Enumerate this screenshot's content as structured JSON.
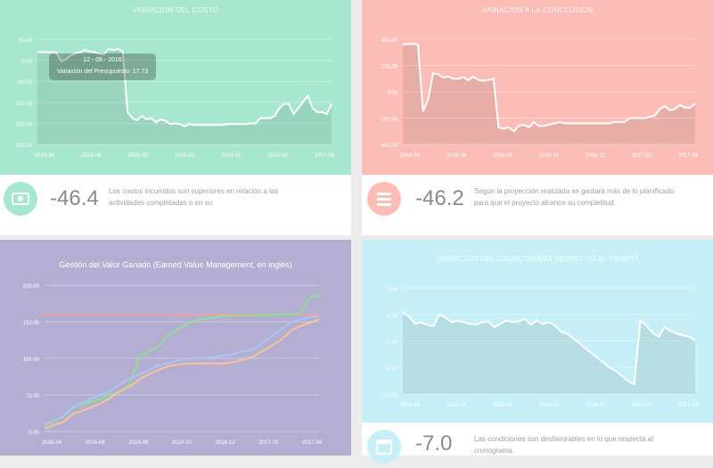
{
  "colors": {
    "green": "#a7e6cf",
    "red": "#fbbdb6",
    "purple": "#b4aed3",
    "cyan": "#c6eff8"
  },
  "panels": [
    {
      "key": "cost",
      "title": "VARIACIÓN DEL COSTO",
      "metric": "-46.4",
      "description_lines": [
        "Los costos incurridos son superiores en relación a las",
        "actividades completadas o en su"
      ],
      "icon": "money-bill-icon"
    },
    {
      "key": "conclusion",
      "title": "VARIACIÓN A LA CONCLUSIÓN",
      "metric": "-46.2",
      "description_lines": [
        "Según la proyección realizada se gastará más de lo planificado",
        "para que el proyecto alcance su completitud."
      ],
      "icon": "list-icon"
    },
    {
      "key": "evm",
      "title": "Gestión del Valor Ganado (Earned Value Management, en inglés)"
    },
    {
      "key": "schedule",
      "title": "VARIACIÓN DEL CRONOGRAMA RESPECTO AL TIEMPO",
      "metric": "-7.0",
      "description_lines": [
        "Las condiciones son desfavorables en lo que respecta al",
        "cronograma."
      ],
      "icon": "calendar-icon"
    }
  ],
  "tooltip": {
    "date": "12 - 06 - 2016",
    "label": "Variación del Presupuesto: 17.73"
  },
  "chart_data": [
    {
      "type": "area",
      "title": "VARIACIÓN DEL COSTO",
      "x_ticks": [
        "2016-04",
        "2016-06",
        "2016-08",
        "2016-10",
        "2016-12",
        "2017-02",
        "2017-04"
      ],
      "y_ticks": [
        "50.00",
        "0.00",
        "-50.00",
        "-100.00",
        "-150.00",
        "-200.00"
      ],
      "ylim": [
        -200,
        60
      ],
      "values": [
        28,
        28,
        28,
        28,
        27,
        5,
        10,
        20,
        25,
        28,
        33,
        30,
        28,
        24,
        22,
        36,
        33,
        36,
        30,
        -120,
        -135,
        -140,
        -130,
        -138,
        -135,
        -145,
        -138,
        -142,
        -150,
        -148,
        -150,
        -155,
        -150,
        -152,
        -152,
        -152,
        -152,
        -152,
        -152,
        -152,
        -150,
        -150,
        -150,
        -150,
        -150,
        -148,
        -148,
        -135,
        -135,
        -135,
        -130,
        -110,
        -100,
        -100,
        -125,
        -110,
        -95,
        -80,
        -110,
        -120,
        -120,
        -125,
        -100
      ]
    },
    {
      "type": "area",
      "title": "VARIACIÓN A LA CONCLUSIÓN",
      "x_ticks": [
        "2016-04",
        "2016-06",
        "2016-08",
        "2016-10",
        "2016-12",
        "2017-02",
        "2017-04"
      ],
      "y_ticks": [
        "400.00",
        "200.00",
        "0.00",
        "-200.00",
        "-400.00"
      ],
      "ylim": [
        -400,
        400
      ],
      "values": [
        360,
        365,
        365,
        360,
        -150,
        -60,
        140,
        135,
        110,
        115,
        100,
        100,
        110,
        90,
        115,
        90,
        85,
        90,
        100,
        -270,
        -280,
        -270,
        -300,
        -260,
        -250,
        -270,
        -230,
        -260,
        -260,
        -250,
        -240,
        -230,
        -240,
        -240,
        -240,
        -240,
        -240,
        -240,
        -240,
        -240,
        -240,
        -240,
        -230,
        -230,
        -230,
        -200,
        -200,
        -200,
        -200,
        -190,
        -180,
        -130,
        -110,
        -140,
        -130,
        -100,
        -120,
        -120,
        -90
      ]
    },
    {
      "type": "line",
      "title": "Gestión del Valor Ganado (Earned Value Management, en inglés)",
      "x_ticks": [
        "2016-04",
        "2016-06",
        "2016-08",
        "2016-10",
        "2016-12",
        "2017-02",
        "2017-04"
      ],
      "y_ticks": [
        "200.00",
        "150.00",
        "100.00",
        "75.00",
        "0.00"
      ],
      "ylim": [
        0,
        215
      ],
      "series": [
        {
          "color": "#f0a0a0",
          "values": [
            172,
            172,
            172,
            172,
            172,
            172,
            172,
            172,
            172,
            172,
            172,
            172,
            172,
            172,
            172,
            172,
            172,
            172,
            172,
            172,
            172,
            172,
            172,
            172,
            172,
            172,
            172,
            172,
            172,
            172
          ]
        },
        {
          "color": "#90e090",
          "values": [
            8,
            15,
            22,
            35,
            40,
            44,
            48,
            55,
            58,
            70,
            110,
            118,
            125,
            140,
            150,
            158,
            163,
            166,
            168,
            170,
            170,
            170,
            171,
            171,
            172,
            172,
            172,
            173,
            197,
            200
          ]
        },
        {
          "color": "#a8c6f0",
          "values": [
            10,
            16,
            22,
            36,
            42,
            48,
            54,
            60,
            70,
            78,
            84,
            90,
            97,
            100,
            104,
            106,
            108,
            108,
            110,
            112,
            114,
            118,
            120,
            130,
            140,
            150,
            160,
            165,
            168,
            170
          ]
        },
        {
          "color": "#f7c49a",
          "values": [
            4,
            10,
            14,
            26,
            30,
            36,
            42,
            50,
            60,
            66,
            76,
            84,
            90,
            96,
            98,
            100,
            100,
            100,
            100,
            100,
            102,
            106,
            110,
            118,
            126,
            135,
            148,
            155,
            160,
            165
          ]
        }
      ]
    },
    {
      "type": "area",
      "title": "VARIACIÓN DEL CRONOGRAMA RESPECTO AL TIEMPO",
      "x_ticks": [
        "2016-04",
        "2016-06",
        "2016-08",
        "2016-10",
        "2016-12",
        "2017-02",
        "2017-04"
      ],
      "y_ticks": [
        "1.00",
        "0.00",
        "-1.00",
        "-5.00",
        "-10.00"
      ],
      "ylim": [
        -11,
        2
      ],
      "values": [
        -1.0,
        -1.5,
        -2.4,
        -2.2,
        -2.5,
        -2.7,
        -1.3,
        -1.6,
        -2.2,
        -2.0,
        -2.2,
        -2.4,
        -2.5,
        -2.2,
        -2.1,
        -2.8,
        -2.4,
        -2.0,
        -2.2,
        -2.1,
        -1.8,
        -2.5,
        -2.0,
        -2.4,
        -2.2,
        -2.6,
        -3.4,
        -3.6,
        -4.2,
        -4.8,
        -5.4,
        -6.0,
        -6.6,
        -7.2,
        -7.8,
        -8.2,
        -8.8,
        -9.4,
        -9.8,
        -2.0,
        -2.6,
        -3.5,
        -4.0,
        -2.8,
        -3.3,
        -3.6,
        -3.8,
        -4.0,
        -4.4
      ]
    }
  ]
}
